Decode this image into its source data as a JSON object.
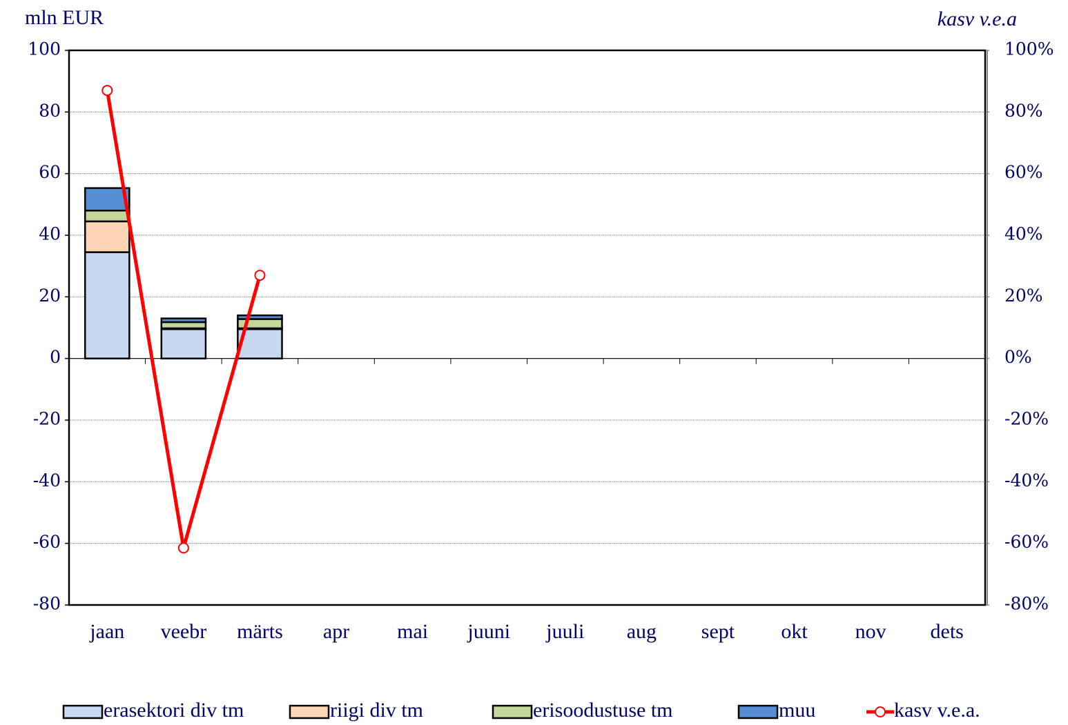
{
  "chart_data": {
    "type": "bar",
    "y_label": "mln EUR",
    "y2_label": "kasv  v.e.a",
    "categories": [
      "jaan",
      "veebr",
      "märts",
      "apr",
      "mai",
      "juuni",
      "juuli",
      "aug",
      "sept",
      "okt",
      "nov",
      "dets"
    ],
    "series": [
      {
        "name": "erasektori div tm",
        "color": "#c6d9f1",
        "values": [
          34.5,
          9.5,
          9.5,
          null,
          null,
          null,
          null,
          null,
          null,
          null,
          null,
          null
        ]
      },
      {
        "name": "riigi div tm",
        "color": "#fcd5b5",
        "values": [
          10,
          0.3,
          0.3,
          null,
          null,
          null,
          null,
          null,
          null,
          null,
          null,
          null
        ]
      },
      {
        "name": "erisoodustuse tm",
        "color": "#c3d69b",
        "values": [
          3.5,
          2,
          3,
          null,
          null,
          null,
          null,
          null,
          null,
          null,
          null,
          null
        ]
      },
      {
        "name": "muu",
        "color": "#558ed5",
        "values": [
          7.3,
          1.2,
          1.2,
          null,
          null,
          null,
          null,
          null,
          null,
          null,
          null,
          null
        ]
      },
      {
        "name": "kasv v.e.a.",
        "color": "#ff0000",
        "type": "line",
        "axis": "y2",
        "values": [
          87,
          -61.5,
          27,
          null,
          null,
          null,
          null,
          null,
          null,
          null,
          null,
          null
        ]
      }
    ],
    "ylim": [
      -80,
      100
    ],
    "yticks": [
      -80,
      -60,
      -40,
      -20,
      0,
      20,
      40,
      60,
      80,
      100
    ],
    "y2lim": [
      -80,
      100
    ],
    "y2ticks": [
      {
        "value": -80,
        "label": "-80%"
      },
      {
        "value": -60,
        "label": "-60%"
      },
      {
        "value": -40,
        "label": "-40%"
      },
      {
        "value": -20,
        "label": "-20%"
      },
      {
        "value": 0,
        "label": "0%"
      },
      {
        "value": 20,
        "label": "20%"
      },
      {
        "value": 40,
        "label": "40%"
      },
      {
        "value": 60,
        "label": "60%"
      },
      {
        "value": 80,
        "label": "80%"
      },
      {
        "value": 100,
        "label": "100%"
      }
    ],
    "grid": true,
    "legend": "bottom"
  }
}
